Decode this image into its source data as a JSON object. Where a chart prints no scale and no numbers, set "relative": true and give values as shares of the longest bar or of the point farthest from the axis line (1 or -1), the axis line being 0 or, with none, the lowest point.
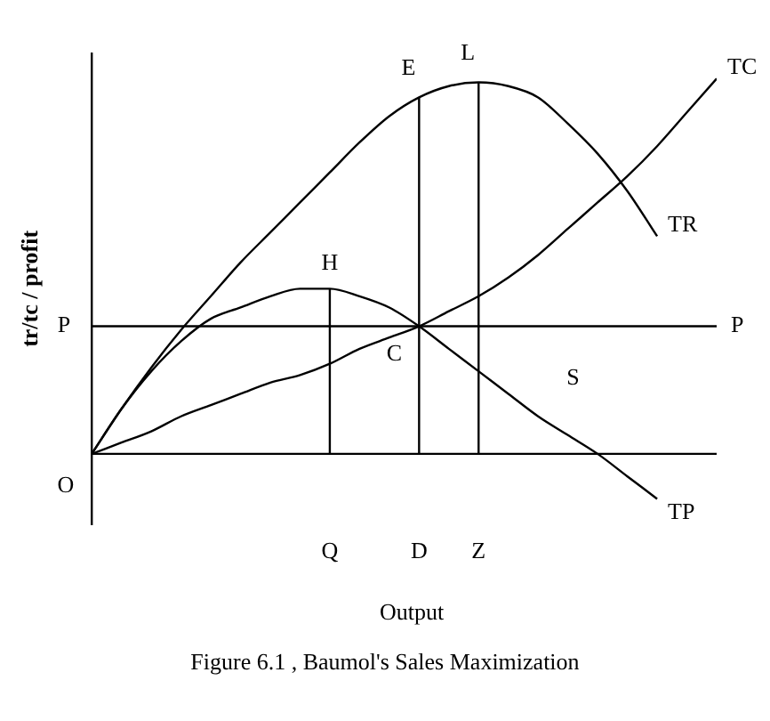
{
  "chart_data": {
    "type": "line",
    "title": "Figure 6.1 , Baumol's Sales Maximization",
    "xlabel": "Output",
    "ylabel": "tr/tc / profit",
    "relative": true,
    "legend": false,
    "grid": false,
    "marker": "none",
    "line_style": "solid",
    "categories": [
      null,
      null,
      null,
      null,
      null,
      null,
      null,
      null,
      "Q",
      null,
      null,
      "D",
      null,
      "Z",
      null,
      null,
      null,
      null,
      null,
      null,
      null,
      null
    ],
    "series": [
      {
        "name": "TR",
        "color": "#000000",
        "values": [
          0,
          0.12,
          0.23,
          0.33,
          0.42,
          0.51,
          0.59,
          0.67,
          0.75,
          0.83,
          0.9,
          0.95,
          0.98,
          0.99,
          0.98,
          0.95,
          0.88,
          0.8,
          0.7,
          0.58,
          null,
          null
        ]
      },
      {
        "name": "TC",
        "color": "#000000",
        "values": [
          0,
          0.03,
          0.06,
          0.1,
          0.13,
          0.16,
          0.19,
          0.21,
          0.24,
          0.28,
          0.31,
          0.34,
          0.38,
          0.42,
          0.47,
          0.53,
          0.6,
          0.67,
          0.74,
          0.82,
          0.91,
          1
        ]
      },
      {
        "name": "TP",
        "color": "#000000",
        "values": [
          0,
          0.12,
          0.22,
          0.3,
          0.36,
          0.39,
          0.42,
          0.44,
          0.44,
          0.42,
          0.39,
          0.34,
          0.28,
          0.22,
          0.16,
          0.1,
          0.05,
          0,
          -0.06,
          -0.12,
          null,
          null
        ]
      },
      {
        "color": "#000000",
        "x": [
          "Q",
          "Q"
        ],
        "values": [
          0,
          0.44
        ]
      },
      {
        "color": "#000000",
        "x": [
          "D",
          "D"
        ],
        "values": [
          0,
          0.95
        ]
      },
      {
        "color": "#000000",
        "x": [
          "Z",
          "Z"
        ],
        "values": [
          0,
          0.99
        ]
      }
    ],
    "ref_lines": [
      {
        "axis": "y",
        "value": 0.34,
        "label": "P"
      }
    ],
    "annotations": [
      {
        "text": "H",
        "x": "Q",
        "y": 0.44
      },
      {
        "text": "E",
        "x": "D",
        "y": 0.95
      },
      {
        "text": "L",
        "x": "Z",
        "y": 0.99
      },
      {
        "text": "C",
        "x": "D",
        "y": 0.34
      },
      "S",
      "O"
    ]
  }
}
